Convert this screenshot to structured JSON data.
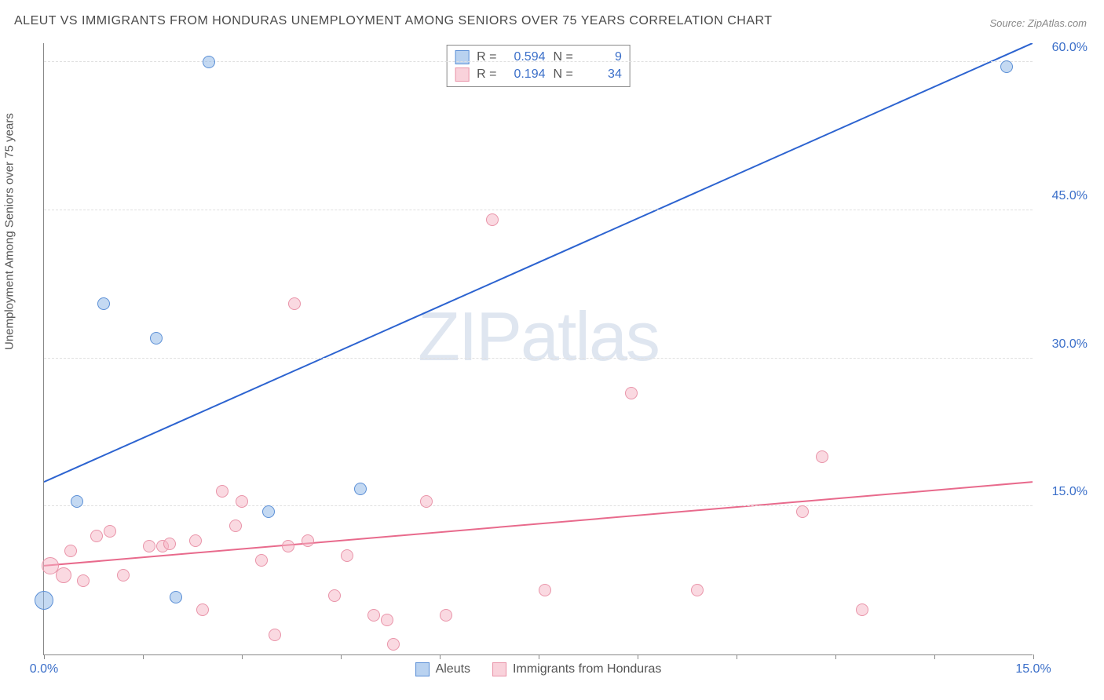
{
  "title": "ALEUT VS IMMIGRANTS FROM HONDURAS UNEMPLOYMENT AMONG SENIORS OVER 75 YEARS CORRELATION CHART",
  "source": "Source: ZipAtlas.com",
  "ylabel": "Unemployment Among Seniors over 75 years",
  "watermark_a": "ZIP",
  "watermark_b": "atlas",
  "chart": {
    "type": "scatter",
    "xlim": [
      0,
      15
    ],
    "ylim": [
      0,
      62
    ],
    "y_gridlines": [
      15,
      30,
      45,
      60
    ],
    "y_tick_labels": [
      "15.0%",
      "30.0%",
      "45.0%",
      "60.0%"
    ],
    "x_ticks": [
      0,
      1.5,
      3,
      4.5,
      6,
      7.5,
      9,
      10.5,
      12,
      13.5,
      15
    ],
    "x_tick_labels": {
      "0": "0.0%",
      "15": "15.0%"
    },
    "background_color": "#ffffff",
    "grid_color": "#e0e0e0",
    "axis_color": "#888888",
    "label_color": "#3b6fc9",
    "marker_radius": 8,
    "series": {
      "aleuts": {
        "label": "Aleuts",
        "color_fill": "rgba(138,180,230,0.5)",
        "color_stroke": "#5b8fd6",
        "R": "0.594",
        "N": "9",
        "trend": {
          "x1": 0,
          "y1": 17.5,
          "x2": 15,
          "y2": 62,
          "color": "#2c63d0",
          "width": 2
        },
        "points": [
          {
            "x": 0.0,
            "y": 5.5,
            "r": 12
          },
          {
            "x": 0.5,
            "y": 15.5
          },
          {
            "x": 0.9,
            "y": 35.5
          },
          {
            "x": 1.7,
            "y": 32.0
          },
          {
            "x": 2.0,
            "y": 5.8
          },
          {
            "x": 2.5,
            "y": 60.0
          },
          {
            "x": 3.4,
            "y": 14.5
          },
          {
            "x": 4.8,
            "y": 16.8
          },
          {
            "x": 14.6,
            "y": 59.5
          }
        ]
      },
      "honduras": {
        "label": "Immigrants from Honduras",
        "color_fill": "rgba(245,180,195,0.5)",
        "color_stroke": "#e994a9",
        "R": "0.194",
        "N": "34",
        "trend": {
          "x1": 0,
          "y1": 9.0,
          "x2": 15,
          "y2": 17.5,
          "color": "#e86a8c",
          "width": 2
        },
        "points": [
          {
            "x": 0.1,
            "y": 9.0,
            "r": 11
          },
          {
            "x": 0.3,
            "y": 8.0,
            "r": 10
          },
          {
            "x": 0.4,
            "y": 10.5
          },
          {
            "x": 0.6,
            "y": 7.5
          },
          {
            "x": 0.8,
            "y": 12.0
          },
          {
            "x": 1.0,
            "y": 12.5
          },
          {
            "x": 1.2,
            "y": 8.0
          },
          {
            "x": 1.6,
            "y": 11.0
          },
          {
            "x": 1.8,
            "y": 11.0
          },
          {
            "x": 1.9,
            "y": 11.2
          },
          {
            "x": 2.3,
            "y": 11.5
          },
          {
            "x": 2.4,
            "y": 4.5
          },
          {
            "x": 2.7,
            "y": 16.5
          },
          {
            "x": 2.9,
            "y": 13.0
          },
          {
            "x": 3.0,
            "y": 15.5
          },
          {
            "x": 3.3,
            "y": 9.5
          },
          {
            "x": 3.5,
            "y": 2.0
          },
          {
            "x": 3.7,
            "y": 11.0
          },
          {
            "x": 3.8,
            "y": 35.5
          },
          {
            "x": 4.0,
            "y": 11.5
          },
          {
            "x": 4.4,
            "y": 6.0
          },
          {
            "x": 4.6,
            "y": 10.0
          },
          {
            "x": 5.0,
            "y": 4.0
          },
          {
            "x": 5.2,
            "y": 3.5
          },
          {
            "x": 5.3,
            "y": 1.0
          },
          {
            "x": 5.8,
            "y": 15.5
          },
          {
            "x": 6.1,
            "y": 4.0
          },
          {
            "x": 6.8,
            "y": 44.0
          },
          {
            "x": 7.6,
            "y": 6.5
          },
          {
            "x": 8.9,
            "y": 26.5
          },
          {
            "x": 9.9,
            "y": 6.5
          },
          {
            "x": 11.5,
            "y": 14.5
          },
          {
            "x": 11.8,
            "y": 20.0
          },
          {
            "x": 12.4,
            "y": 4.5
          }
        ]
      }
    }
  },
  "legend_top_rows": [
    {
      "swatch": "blue",
      "r_label": "R =",
      "r_val": "0.594",
      "n_label": "N =",
      "n_val": "9"
    },
    {
      "swatch": "pink",
      "r_label": "R =",
      "r_val": "0.194",
      "n_label": "N =",
      "n_val": "34"
    }
  ]
}
